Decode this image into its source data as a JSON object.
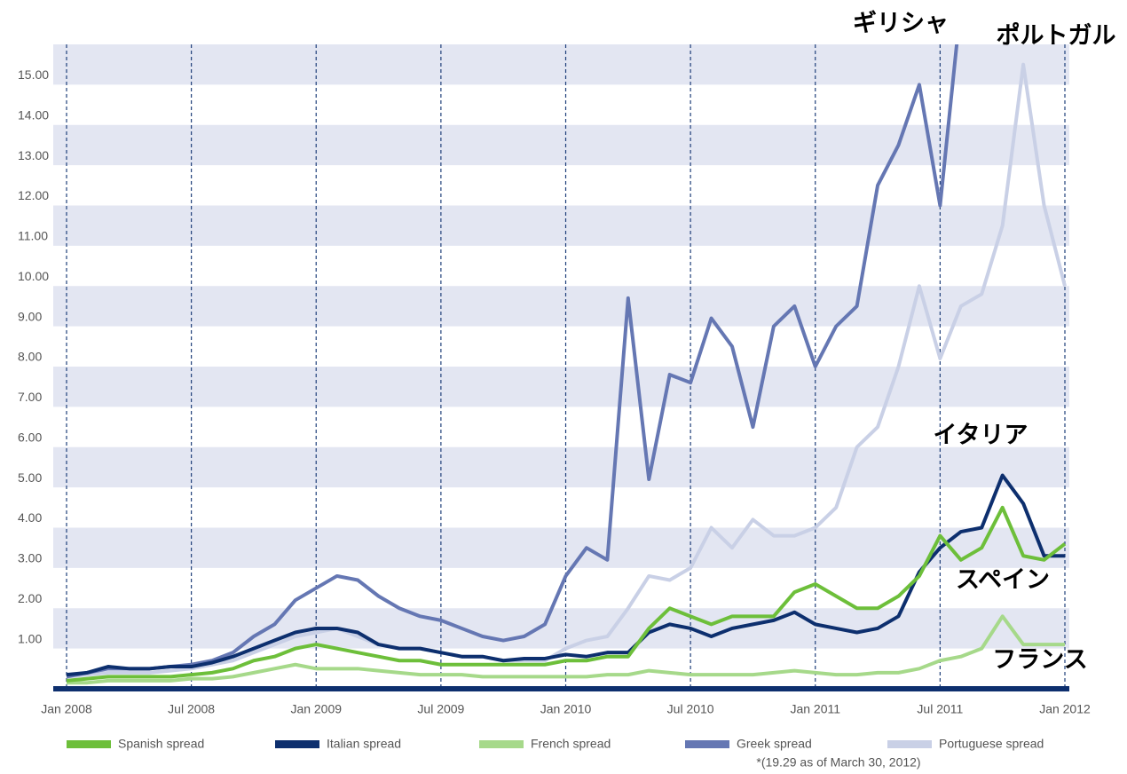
{
  "chart_data": {
    "type": "line",
    "x": [
      "2008-01",
      "2008-02",
      "2008-03",
      "2008-04",
      "2008-05",
      "2008-06",
      "2008-07",
      "2008-08",
      "2008-09",
      "2008-10",
      "2008-11",
      "2008-12",
      "2009-01",
      "2009-02",
      "2009-03",
      "2009-04",
      "2009-05",
      "2009-06",
      "2009-07",
      "2009-08",
      "2009-09",
      "2009-10",
      "2009-11",
      "2009-12",
      "2010-01",
      "2010-02",
      "2010-03",
      "2010-04",
      "2010-05",
      "2010-06",
      "2010-07",
      "2010-08",
      "2010-09",
      "2010-10",
      "2010-11",
      "2010-12",
      "2011-01",
      "2011-02",
      "2011-03",
      "2011-04",
      "2011-05",
      "2011-06",
      "2011-07",
      "2011-08",
      "2011-09",
      "2011-10",
      "2011-11",
      "2011-12",
      "2012-01"
    ],
    "series": [
      {
        "name": "Spanish spread",
        "color": "#6dbf3a",
        "values": [
          0.2,
          0.25,
          0.3,
          0.3,
          0.3,
          0.3,
          0.35,
          0.4,
          0.5,
          0.7,
          0.8,
          1.0,
          1.1,
          1.0,
          0.9,
          0.8,
          0.7,
          0.7,
          0.6,
          0.6,
          0.6,
          0.6,
          0.6,
          0.6,
          0.7,
          0.7,
          0.8,
          0.8,
          1.5,
          2.0,
          1.8,
          1.6,
          1.8,
          1.8,
          1.8,
          2.4,
          2.6,
          2.3,
          2.0,
          2.0,
          2.3,
          2.8,
          3.8,
          3.2,
          3.5,
          4.5,
          3.3,
          3.2,
          3.6
        ]
      },
      {
        "name": "Italian spread",
        "color": "#0d2f6e",
        "values": [
          0.35,
          0.4,
          0.55,
          0.5,
          0.5,
          0.55,
          0.55,
          0.65,
          0.8,
          1.0,
          1.2,
          1.4,
          1.5,
          1.5,
          1.4,
          1.1,
          1.0,
          1.0,
          0.9,
          0.8,
          0.8,
          0.7,
          0.75,
          0.75,
          0.85,
          0.8,
          0.9,
          0.9,
          1.4,
          1.6,
          1.5,
          1.3,
          1.5,
          1.6,
          1.7,
          1.9,
          1.6,
          1.5,
          1.4,
          1.5,
          1.8,
          2.9,
          3.5,
          3.9,
          4.0,
          5.3,
          4.6,
          3.3,
          3.3
        ]
      },
      {
        "name": "French spread",
        "color": "#a6d98a",
        "values": [
          0.15,
          0.15,
          0.2,
          0.2,
          0.2,
          0.2,
          0.25,
          0.25,
          0.3,
          0.4,
          0.5,
          0.6,
          0.5,
          0.5,
          0.5,
          0.45,
          0.4,
          0.35,
          0.35,
          0.35,
          0.3,
          0.3,
          0.3,
          0.3,
          0.3,
          0.3,
          0.35,
          0.35,
          0.45,
          0.4,
          0.35,
          0.35,
          0.35,
          0.35,
          0.4,
          0.45,
          0.4,
          0.35,
          0.35,
          0.4,
          0.4,
          0.5,
          0.7,
          0.8,
          1.0,
          1.8,
          1.1,
          1.1,
          1.1
        ]
      },
      {
        "name": "Greek spread",
        "color": "#6577b3",
        "values": [
          0.3,
          0.4,
          0.5,
          0.5,
          0.5,
          0.55,
          0.6,
          0.7,
          0.9,
          1.3,
          1.6,
          2.2,
          2.5,
          2.8,
          2.7,
          2.3,
          2.0,
          1.8,
          1.7,
          1.5,
          1.3,
          1.2,
          1.3,
          1.6,
          2.8,
          3.5,
          3.2,
          9.7,
          5.2,
          7.8,
          7.6,
          9.2,
          8.5,
          6.5,
          9.0,
          9.5,
          8.0,
          9.0,
          9.5,
          12.5,
          13.5,
          15.0,
          12.0,
          17,
          null,
          null,
          null,
          null,
          null
        ]
      },
      {
        "name": "Portuguese spread",
        "color": "#c9d0e6",
        "values": [
          0.3,
          0.35,
          0.4,
          0.4,
          0.4,
          0.45,
          0.5,
          0.6,
          0.7,
          0.9,
          1.1,
          1.3,
          1.4,
          1.5,
          1.3,
          1.1,
          1.0,
          1.0,
          0.9,
          0.8,
          0.8,
          0.7,
          0.7,
          0.7,
          1.0,
          1.2,
          1.3,
          2.0,
          2.8,
          2.7,
          3.0,
          4.0,
          3.5,
          4.2,
          3.8,
          3.8,
          4.0,
          4.5,
          6.0,
          6.5,
          8.0,
          10.0,
          8.2,
          9.5,
          9.8,
          11.5,
          15.5,
          12.0,
          10.0
        ]
      }
    ],
    "xlim": [
      "2008-01",
      "2012-01"
    ],
    "xticks": [
      {
        "value": "2008-01",
        "label": "Jan 2008"
      },
      {
        "value": "2008-07",
        "label": "Jul 2008"
      },
      {
        "value": "2009-01",
        "label": "Jan 2009"
      },
      {
        "value": "2009-07",
        "label": "Jul 2009"
      },
      {
        "value": "2010-01",
        "label": "Jan 2010"
      },
      {
        "value": "2010-07",
        "label": "Jul 2010"
      },
      {
        "value": "2011-01",
        "label": "Jan 2011"
      },
      {
        "value": "2011-07",
        "label": "Jul 2011"
      },
      {
        "value": "2012-01",
        "label": "Jan 2012"
      }
    ],
    "ylim": [
      0,
      16
    ],
    "yticks": [
      {
        "value": 1,
        "label": "1.00"
      },
      {
        "value": 2,
        "label": "2.00"
      },
      {
        "value": 3,
        "label": "3.00"
      },
      {
        "value": 4,
        "label": "4.00"
      },
      {
        "value": 5,
        "label": "5.00"
      },
      {
        "value": 6,
        "label": "6.00"
      },
      {
        "value": 7,
        "label": "7.00"
      },
      {
        "value": 8,
        "label": "8.00"
      },
      {
        "value": 9,
        "label": "9.00"
      },
      {
        "value": 10,
        "label": "10.00"
      },
      {
        "value": 11,
        "label": "11.00"
      },
      {
        "value": 12,
        "label": "12.00"
      },
      {
        "value": 13,
        "label": "13.00"
      },
      {
        "value": 14,
        "label": "14.00"
      },
      {
        "value": 15,
        "label": "15.00"
      }
    ],
    "grid": true,
    "legend": "bottom",
    "annotations": [
      "ギリシャ",
      "ポルトガル",
      "イタリア",
      "スペイン",
      "フランス"
    ],
    "footnote": "*(19.29 as of March 30, 2012)"
  }
}
